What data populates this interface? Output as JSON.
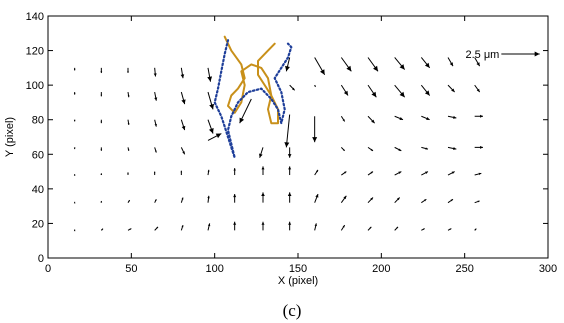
{
  "chart_data": {
    "type": "quiver",
    "xlabel": "X (pixel)",
    "ylabel": "Y (pixel)",
    "xlim": [
      0,
      300
    ],
    "ylim": [
      0,
      140
    ],
    "xticks": [
      "0",
      "50",
      "100",
      "150",
      "200",
      "250",
      "300"
    ],
    "yticks": [
      "0",
      "20",
      "40",
      "60",
      "80",
      "100",
      "120",
      "140"
    ],
    "panel_label": "(c)",
    "scale_label": "2.5 μm",
    "scale_arrow": {
      "x": 272,
      "y": 118,
      "u": 23,
      "v": 0
    },
    "line_color": "#000000",
    "contour_colors": [
      "#c8901a",
      "#1f3f9a"
    ],
    "vectors": [
      {
        "x": 16,
        "y": 110,
        "u": 0,
        "v": -1.5
      },
      {
        "x": 32,
        "y": 110,
        "u": 0,
        "v": -3
      },
      {
        "x": 48,
        "y": 110,
        "u": 0,
        "v": -3
      },
      {
        "x": 64,
        "y": 110,
        "u": 0.5,
        "v": -5
      },
      {
        "x": 80,
        "y": 110,
        "u": 1,
        "v": -6
      },
      {
        "x": 96,
        "y": 110,
        "u": 1.5,
        "v": -8
      },
      {
        "x": 145,
        "y": 116,
        "u": -2,
        "v": -8
      },
      {
        "x": 160,
        "y": 116,
        "u": 6,
        "v": -10
      },
      {
        "x": 176,
        "y": 116,
        "u": 6,
        "v": -8
      },
      {
        "x": 192,
        "y": 116,
        "u": 6,
        "v": -8
      },
      {
        "x": 208,
        "y": 116,
        "u": 6,
        "v": -7
      },
      {
        "x": 224,
        "y": 116,
        "u": 5,
        "v": -6
      },
      {
        "x": 240,
        "y": 116,
        "u": 3,
        "v": -5
      },
      {
        "x": 256,
        "y": 116,
        "u": 3,
        "v": -5
      },
      {
        "x": 16,
        "y": 96,
        "u": 0,
        "v": -1.5
      },
      {
        "x": 32,
        "y": 96,
        "u": 0,
        "v": -2.5
      },
      {
        "x": 48,
        "y": 96,
        "u": 0.5,
        "v": -3
      },
      {
        "x": 64,
        "y": 96,
        "u": 1,
        "v": -5
      },
      {
        "x": 80,
        "y": 96,
        "u": 2,
        "v": -7
      },
      {
        "x": 96,
        "y": 96,
        "u": 3,
        "v": -10
      },
      {
        "x": 145,
        "y": 100,
        "u": 3,
        "v": -3
      },
      {
        "x": 160,
        "y": 100,
        "u": 0.5,
        "v": -1
      },
      {
        "x": 176,
        "y": 100,
        "u": 4,
        "v": -6
      },
      {
        "x": 192,
        "y": 100,
        "u": 5,
        "v": -7
      },
      {
        "x": 208,
        "y": 100,
        "u": 6,
        "v": -7
      },
      {
        "x": 224,
        "y": 100,
        "u": 5,
        "v": -6
      },
      {
        "x": 240,
        "y": 100,
        "u": 4,
        "v": -4
      },
      {
        "x": 256,
        "y": 100,
        "u": 3,
        "v": -4
      },
      {
        "x": 16,
        "y": 80,
        "u": 0,
        "v": -1
      },
      {
        "x": 32,
        "y": 80,
        "u": 0,
        "v": -2
      },
      {
        "x": 48,
        "y": 80,
        "u": 0.5,
        "v": -3
      },
      {
        "x": 64,
        "y": 80,
        "u": 1,
        "v": -4
      },
      {
        "x": 80,
        "y": 80,
        "u": 2,
        "v": -6
      },
      {
        "x": 96,
        "y": 80,
        "u": 3,
        "v": -8
      },
      {
        "x": 122,
        "y": 92,
        "u": -7,
        "v": -14
      },
      {
        "x": 145,
        "y": 83,
        "u": -2,
        "v": -19
      },
      {
        "x": 160,
        "y": 82,
        "u": 0,
        "v": -15
      },
      {
        "x": 176,
        "y": 82,
        "u": 2,
        "v": -3
      },
      {
        "x": 192,
        "y": 82,
        "u": 4,
        "v": -4
      },
      {
        "x": 208,
        "y": 82,
        "u": 5,
        "v": -2
      },
      {
        "x": 224,
        "y": 82,
        "u": 5,
        "v": -2
      },
      {
        "x": 240,
        "y": 82,
        "u": 5,
        "v": -1
      },
      {
        "x": 256,
        "y": 82,
        "u": 5,
        "v": 0
      },
      {
        "x": 16,
        "y": 64,
        "u": 0,
        "v": -1
      },
      {
        "x": 32,
        "y": 64,
        "u": 0,
        "v": -2
      },
      {
        "x": 48,
        "y": 64,
        "u": 0.5,
        "v": -2
      },
      {
        "x": 64,
        "y": 64,
        "u": 1,
        "v": -3
      },
      {
        "x": 80,
        "y": 64,
        "u": 2,
        "v": -4
      },
      {
        "x": 96,
        "y": 68,
        "u": 8,
        "v": 4
      },
      {
        "x": 129,
        "y": 64,
        "u": -2,
        "v": -6
      },
      {
        "x": 145,
        "y": 64,
        "u": 0,
        "v": -6
      },
      {
        "x": 176,
        "y": 64,
        "u": 2,
        "v": -2
      },
      {
        "x": 192,
        "y": 64,
        "u": 3,
        "v": -2
      },
      {
        "x": 208,
        "y": 64,
        "u": 4,
        "v": -2
      },
      {
        "x": 224,
        "y": 64,
        "u": 4,
        "v": -1
      },
      {
        "x": 240,
        "y": 64,
        "u": 5,
        "v": -1
      },
      {
        "x": 256,
        "y": 64,
        "u": 5,
        "v": 0
      },
      {
        "x": 16,
        "y": 48,
        "u": 0,
        "v": 0.5
      },
      {
        "x": 32,
        "y": 48,
        "u": 0,
        "v": 1
      },
      {
        "x": 48,
        "y": 48,
        "u": 0,
        "v": 1.5
      },
      {
        "x": 64,
        "y": 48,
        "u": 0,
        "v": 2
      },
      {
        "x": 80,
        "y": 48,
        "u": 0,
        "v": 2.5
      },
      {
        "x": 96,
        "y": 48,
        "u": 0.5,
        "v": 3
      },
      {
        "x": 112,
        "y": 48,
        "u": 0,
        "v": 4
      },
      {
        "x": 129,
        "y": 48,
        "u": 0,
        "v": 5
      },
      {
        "x": 145,
        "y": 48,
        "u": 0,
        "v": 5
      },
      {
        "x": 160,
        "y": 48,
        "u": 2,
        "v": 3
      },
      {
        "x": 176,
        "y": 48,
        "u": 3,
        "v": 2
      },
      {
        "x": 192,
        "y": 48,
        "u": 3,
        "v": 2
      },
      {
        "x": 208,
        "y": 48,
        "u": 4,
        "v": 2
      },
      {
        "x": 224,
        "y": 48,
        "u": 4,
        "v": 2
      },
      {
        "x": 240,
        "y": 48,
        "u": 4,
        "v": 2
      },
      {
        "x": 256,
        "y": 48,
        "u": 4,
        "v": 1
      },
      {
        "x": 16,
        "y": 32,
        "u": 0,
        "v": 0.5
      },
      {
        "x": 32,
        "y": 32,
        "u": 0,
        "v": 1
      },
      {
        "x": 48,
        "y": 32,
        "u": 1,
        "v": 1.5
      },
      {
        "x": 64,
        "y": 32,
        "u": 1,
        "v": 2
      },
      {
        "x": 80,
        "y": 32,
        "u": 1,
        "v": 3
      },
      {
        "x": 96,
        "y": 32,
        "u": 0.5,
        "v": 4
      },
      {
        "x": 112,
        "y": 32,
        "u": 0,
        "v": 5
      },
      {
        "x": 129,
        "y": 32,
        "u": 0,
        "v": 6
      },
      {
        "x": 145,
        "y": 32,
        "u": 0,
        "v": 6
      },
      {
        "x": 160,
        "y": 32,
        "u": 2,
        "v": 5
      },
      {
        "x": 176,
        "y": 32,
        "u": 3,
        "v": 4
      },
      {
        "x": 192,
        "y": 32,
        "u": 3,
        "v": 3
      },
      {
        "x": 208,
        "y": 32,
        "u": 3,
        "v": 3
      },
      {
        "x": 224,
        "y": 32,
        "u": 3,
        "v": 2
      },
      {
        "x": 240,
        "y": 32,
        "u": 3,
        "v": 2
      },
      {
        "x": 256,
        "y": 32,
        "u": 3,
        "v": 1
      },
      {
        "x": 16,
        "y": 16,
        "u": 0,
        "v": 0.5
      },
      {
        "x": 32,
        "y": 16,
        "u": 1,
        "v": 1
      },
      {
        "x": 48,
        "y": 16,
        "u": 2,
        "v": 1
      },
      {
        "x": 64,
        "y": 16,
        "u": 2,
        "v": 2
      },
      {
        "x": 80,
        "y": 16,
        "u": 1,
        "v": 3
      },
      {
        "x": 96,
        "y": 16,
        "u": 1,
        "v": 4
      },
      {
        "x": 112,
        "y": 16,
        "u": 0,
        "v": 5
      },
      {
        "x": 129,
        "y": 16,
        "u": 0,
        "v": 5
      },
      {
        "x": 145,
        "y": 16,
        "u": 0,
        "v": 5
      },
      {
        "x": 160,
        "y": 16,
        "u": 1,
        "v": 4
      },
      {
        "x": 176,
        "y": 16,
        "u": 2,
        "v": 3
      },
      {
        "x": 192,
        "y": 16,
        "u": 2,
        "v": 2
      },
      {
        "x": 208,
        "y": 16,
        "u": 2,
        "v": 2
      },
      {
        "x": 224,
        "y": 16,
        "u": 2,
        "v": 1
      },
      {
        "x": 240,
        "y": 16,
        "u": 2,
        "v": 1
      },
      {
        "x": 256,
        "y": 16,
        "u": 1,
        "v": 1
      }
    ],
    "contours": [
      {
        "color": "#c8901a",
        "style": "solid",
        "points": [
          [
            106,
            128
          ],
          [
            110,
            120
          ],
          [
            116,
            112
          ],
          [
            118,
            104
          ],
          [
            114,
            98
          ],
          [
            110,
            94
          ],
          [
            108,
            88
          ],
          [
            112,
            84
          ],
          [
            116,
            90
          ],
          [
            118,
            100
          ],
          [
            116,
            108
          ],
          [
            122,
            112
          ],
          [
            128,
            110
          ],
          [
            132,
            104
          ],
          [
            134,
            94
          ],
          [
            132,
            86
          ],
          [
            134,
            78
          ],
          [
            138,
            78
          ],
          [
            138,
            86
          ],
          [
            134,
            94
          ],
          [
            130,
            100
          ],
          [
            126,
            106
          ],
          [
            126,
            114
          ],
          [
            132,
            120
          ],
          [
            136,
            124
          ]
        ]
      },
      {
        "color": "#1f3f9a",
        "style": "dotted",
        "points": [
          [
            108,
            126
          ],
          [
            106,
            118
          ],
          [
            104,
            108
          ],
          [
            102,
            98
          ],
          [
            100,
            90
          ],
          [
            104,
            82
          ],
          [
            106,
            76
          ],
          [
            108,
            70
          ],
          [
            110,
            64
          ],
          [
            112,
            58
          ],
          [
            110,
            66
          ],
          [
            108,
            74
          ],
          [
            110,
            82
          ],
          [
            114,
            90
          ],
          [
            120,
            96
          ],
          [
            128,
            98
          ],
          [
            134,
            92
          ],
          [
            138,
            86
          ],
          [
            140,
            78
          ],
          [
            142,
            86
          ],
          [
            140,
            96
          ],
          [
            136,
            104
          ],
          [
            140,
            110
          ],
          [
            144,
            116
          ],
          [
            146,
            122
          ],
          [
            144,
            124
          ]
        ]
      }
    ]
  }
}
